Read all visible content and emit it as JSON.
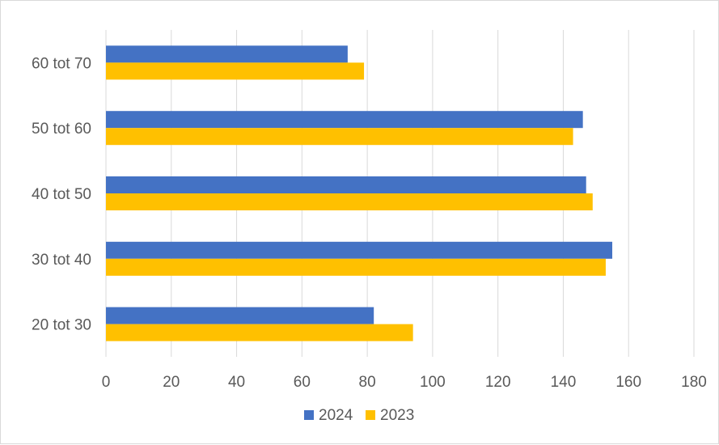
{
  "chart_data": {
    "type": "bar",
    "orientation": "horizontal",
    "categories": [
      "20 tot 30",
      "30 tot 40",
      "40 tot 50",
      "50 tot 60",
      "60 tot 70"
    ],
    "series": [
      {
        "name": "2024",
        "color": "#4472C4",
        "values": [
          82,
          155,
          147,
          146,
          74
        ]
      },
      {
        "name": "2023",
        "color": "#FFC000",
        "values": [
          94,
          153,
          149,
          143,
          79
        ]
      }
    ],
    "xlim": [
      0,
      180
    ],
    "xticks": [
      0,
      20,
      40,
      60,
      80,
      100,
      120,
      140,
      160,
      180
    ],
    "grid": "vertical",
    "legend_position": "bottom",
    "title": "",
    "xlabel": "",
    "ylabel": ""
  }
}
